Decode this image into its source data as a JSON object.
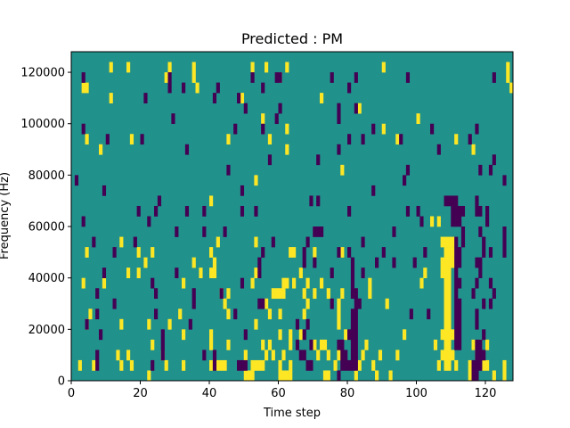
{
  "chart_data": {
    "type": "heatmap",
    "title": "Predicted : PM",
    "xlabel": "Time step",
    "ylabel": "Frequency (Hz)",
    "xlim": [
      0,
      128
    ],
    "ylim": [
      0,
      128000
    ],
    "x_ticks": [
      0,
      20,
      40,
      60,
      80,
      100,
      120
    ],
    "y_ticks": [
      0,
      20000,
      40000,
      60000,
      80000,
      100000,
      120000
    ],
    "y_tick_labels": [
      "0",
      "20000",
      "40000",
      "60000",
      "80000",
      "100000",
      "120000"
    ],
    "grid": false,
    "colormap": "viridis",
    "levels": {
      "low": 0,
      "mid": 1,
      "high": 2
    },
    "colors": {
      "low": "#440154",
      "mid": "#21918c",
      "high": "#fde725"
    },
    "background_level": 1,
    "cell_size": {
      "time_step": 1,
      "frequency_hz": 4000
    },
    "high_cells": [
      [
        3,
        28
      ],
      [
        11,
        30
      ],
      [
        16,
        30
      ],
      [
        28,
        30
      ],
      [
        35,
        30
      ],
      [
        52,
        30
      ],
      [
        56,
        30
      ],
      [
        62,
        30
      ],
      [
        90,
        30
      ],
      [
        126,
        30
      ],
      [
        27,
        29
      ],
      [
        35,
        29
      ],
      [
        60,
        29
      ],
      [
        126,
        29
      ],
      [
        4,
        28
      ],
      [
        36,
        28
      ],
      [
        11,
        27
      ],
      [
        49,
        27
      ],
      [
        72,
        27
      ],
      [
        127,
        28
      ],
      [
        55,
        25
      ],
      [
        100,
        25
      ],
      [
        83,
        26
      ],
      [
        62,
        24
      ],
      [
        90,
        24
      ],
      [
        4,
        23
      ],
      [
        17,
        23
      ],
      [
        45,
        23
      ],
      [
        57,
        23
      ],
      [
        94,
        23
      ],
      [
        111,
        23
      ],
      [
        8,
        22
      ],
      [
        116,
        22
      ],
      [
        62,
        22
      ],
      [
        53,
        19
      ],
      [
        78,
        20
      ],
      [
        40,
        17
      ],
      [
        104,
        15
      ],
      [
        106,
        15
      ],
      [
        107,
        13
      ],
      [
        108,
        13
      ],
      [
        109,
        13
      ],
      [
        110,
        13
      ],
      [
        108,
        12
      ],
      [
        109,
        12
      ],
      [
        110,
        12
      ],
      [
        107,
        11
      ],
      [
        108,
        11
      ],
      [
        109,
        11
      ],
      [
        110,
        11
      ],
      [
        107,
        10
      ],
      [
        108,
        10
      ],
      [
        109,
        10
      ],
      [
        108,
        9
      ],
      [
        109,
        9
      ],
      [
        108,
        8
      ],
      [
        109,
        8
      ],
      [
        108,
        7
      ],
      [
        109,
        7
      ],
      [
        108,
        6
      ],
      [
        109,
        6
      ],
      [
        108,
        5
      ],
      [
        109,
        5
      ],
      [
        107,
        4
      ],
      [
        108,
        4
      ],
      [
        109,
        4
      ],
      [
        110,
        4
      ],
      [
        108,
        3
      ],
      [
        109,
        3
      ],
      [
        107,
        2
      ],
      [
        108,
        2
      ],
      [
        109,
        2
      ],
      [
        110,
        2
      ],
      [
        108,
        1
      ],
      [
        109,
        1
      ],
      [
        106,
        1
      ],
      [
        111,
        1
      ],
      [
        14,
        13
      ],
      [
        19,
        12
      ],
      [
        23,
        12
      ],
      [
        21,
        11
      ],
      [
        35,
        11
      ],
      [
        42,
        13
      ],
      [
        53,
        13
      ],
      [
        40,
        12
      ],
      [
        41,
        11
      ],
      [
        63,
        12
      ],
      [
        64,
        12
      ],
      [
        70,
        12
      ],
      [
        78,
        12
      ],
      [
        4,
        12
      ],
      [
        16,
        10
      ],
      [
        19,
        10
      ],
      [
        41,
        10
      ],
      [
        53,
        10
      ],
      [
        66,
        10
      ],
      [
        32,
        9
      ],
      [
        52,
        9
      ],
      [
        61,
        9
      ],
      [
        62,
        9
      ],
      [
        64,
        9
      ],
      [
        68,
        9
      ],
      [
        72,
        9
      ],
      [
        67,
        8
      ],
      [
        74,
        8
      ],
      [
        78,
        8
      ],
      [
        43,
        8
      ],
      [
        45,
        8
      ],
      [
        58,
        8
      ],
      [
        59,
        8
      ],
      [
        60,
        8
      ],
      [
        61,
        8
      ],
      [
        70,
        8
      ],
      [
        86,
        8
      ],
      [
        86,
        9
      ],
      [
        101,
        9
      ],
      [
        102,
        10
      ],
      [
        9,
        9
      ],
      [
        3,
        9
      ],
      [
        37,
        10
      ],
      [
        40,
        10
      ],
      [
        44,
        7
      ],
      [
        56,
        7
      ],
      [
        68,
        7
      ],
      [
        77,
        7
      ],
      [
        77,
        6
      ],
      [
        91,
        7
      ],
      [
        5,
        6
      ],
      [
        31,
        6
      ],
      [
        45,
        6
      ],
      [
        57,
        6
      ],
      [
        60,
        6
      ],
      [
        67,
        6
      ],
      [
        77,
        5
      ],
      [
        4,
        5
      ],
      [
        14,
        5
      ],
      [
        22,
        5
      ],
      [
        28,
        5
      ],
      [
        53,
        5
      ],
      [
        60,
        4
      ],
      [
        63,
        4
      ],
      [
        66,
        4
      ],
      [
        79,
        4
      ],
      [
        96,
        4
      ],
      [
        40,
        3
      ],
      [
        45,
        3
      ],
      [
        55,
        3
      ],
      [
        63,
        3
      ],
      [
        70,
        3
      ],
      [
        72,
        3
      ],
      [
        73,
        3
      ],
      [
        85,
        3
      ],
      [
        56,
        2
      ],
      [
        61,
        2
      ],
      [
        71,
        2
      ],
      [
        74,
        2
      ],
      [
        77,
        2
      ],
      [
        84,
        2
      ],
      [
        89,
        2
      ],
      [
        94,
        2
      ],
      [
        117,
        2
      ],
      [
        2,
        1
      ],
      [
        6,
        1
      ],
      [
        14,
        1
      ],
      [
        17,
        1
      ],
      [
        27,
        1
      ],
      [
        32,
        1
      ],
      [
        40,
        1
      ],
      [
        42,
        1
      ],
      [
        43,
        1
      ],
      [
        44,
        1
      ],
      [
        52,
        1
      ],
      [
        53,
        1
      ],
      [
        54,
        1
      ],
      [
        55,
        1
      ],
      [
        60,
        1
      ],
      [
        63,
        1
      ],
      [
        76,
        1
      ],
      [
        83,
        1
      ],
      [
        87,
        1
      ],
      [
        115,
        1
      ],
      [
        119,
        1
      ],
      [
        120,
        1
      ],
      [
        125,
        1
      ],
      [
        22,
        0
      ],
      [
        50,
        0
      ],
      [
        51,
        0
      ],
      [
        52,
        0
      ],
      [
        60,
        0
      ],
      [
        61,
        0
      ],
      [
        62,
        0
      ],
      [
        63,
        0
      ],
      [
        73,
        0
      ],
      [
        74,
        0
      ],
      [
        82,
        0
      ],
      [
        88,
        0
      ],
      [
        92,
        0
      ],
      [
        115,
        0
      ],
      [
        122,
        0
      ],
      [
        125,
        0
      ],
      [
        32,
        4
      ],
      [
        40,
        4
      ],
      [
        57,
        3
      ],
      [
        23,
        3
      ],
      [
        16,
        2
      ],
      [
        26,
        2
      ],
      [
        13,
        2
      ],
      [
        58,
        2
      ],
      [
        50,
        2
      ],
      [
        105,
        3
      ],
      [
        116,
        3
      ],
      [
        118,
        3
      ],
      [
        120,
        3
      ]
    ],
    "low_cells": [
      [
        3,
        29
      ],
      [
        28,
        29
      ],
      [
        52,
        29
      ],
      [
        60,
        29
      ],
      [
        75,
        29
      ],
      [
        82,
        29
      ],
      [
        97,
        29
      ],
      [
        122,
        29
      ],
      [
        28,
        28
      ],
      [
        32,
        28
      ],
      [
        42,
        28
      ],
      [
        55,
        28
      ],
      [
        80,
        28
      ],
      [
        21,
        27
      ],
      [
        41,
        27
      ],
      [
        48,
        27
      ],
      [
        50,
        26
      ],
      [
        60,
        26
      ],
      [
        29,
        25
      ],
      [
        77,
        25
      ],
      [
        77,
        26
      ],
      [
        3,
        24
      ],
      [
        47,
        24
      ],
      [
        55,
        24
      ],
      [
        87,
        24
      ],
      [
        104,
        24
      ],
      [
        117,
        24
      ],
      [
        10,
        23
      ],
      [
        20,
        23
      ],
      [
        80,
        23
      ],
      [
        84,
        23
      ],
      [
        95,
        23
      ],
      [
        115,
        23
      ],
      [
        33,
        22
      ],
      [
        106,
        22
      ],
      [
        77,
        22
      ],
      [
        71,
        21
      ],
      [
        57,
        21
      ],
      [
        45,
        20
      ],
      [
        118,
        20
      ],
      [
        97,
        20
      ],
      [
        1,
        19
      ],
      [
        9,
        18
      ],
      [
        49,
        18
      ],
      [
        87,
        18
      ],
      [
        96,
        19
      ],
      [
        125,
        19
      ],
      [
        122,
        21
      ],
      [
        121,
        20
      ],
      [
        82,
        26
      ],
      [
        25,
        17
      ],
      [
        33,
        16
      ],
      [
        38,
        16
      ],
      [
        69,
        17
      ],
      [
        71,
        17
      ],
      [
        108,
        17
      ],
      [
        109,
        17
      ],
      [
        110,
        17
      ],
      [
        111,
        17
      ],
      [
        110,
        16
      ],
      [
        111,
        16
      ],
      [
        112,
        16
      ],
      [
        113,
        16
      ],
      [
        117,
        17
      ],
      [
        19,
        16
      ],
      [
        24,
        16
      ],
      [
        49,
        16
      ],
      [
        53,
        16
      ],
      [
        80,
        16
      ],
      [
        97,
        16
      ],
      [
        100,
        16
      ],
      [
        117,
        16
      ],
      [
        118,
        16
      ],
      [
        120,
        16
      ],
      [
        110,
        15
      ],
      [
        111,
        15
      ],
      [
        112,
        15
      ],
      [
        120,
        15
      ],
      [
        3,
        15
      ],
      [
        22,
        15
      ],
      [
        101,
        15
      ],
      [
        70,
        14
      ],
      [
        71,
        14
      ],
      [
        72,
        14
      ],
      [
        118,
        14
      ],
      [
        30,
        14
      ],
      [
        38,
        14
      ],
      [
        44,
        14
      ],
      [
        93,
        14
      ],
      [
        113,
        14
      ],
      [
        125,
        14
      ],
      [
        111,
        13
      ],
      [
        113,
        13
      ],
      [
        119,
        13
      ],
      [
        6,
        13
      ],
      [
        18,
        13
      ],
      [
        58,
        13
      ],
      [
        68,
        13
      ],
      [
        84,
        13
      ],
      [
        125,
        13
      ],
      [
        121,
        12
      ],
      [
        12,
        12
      ],
      [
        55,
        12
      ],
      [
        67,
        12
      ],
      [
        77,
        12
      ],
      [
        80,
        12
      ],
      [
        90,
        12
      ],
      [
        102,
        12
      ],
      [
        111,
        12
      ],
      [
        112,
        12
      ],
      [
        119,
        12
      ],
      [
        125,
        12
      ],
      [
        111,
        11
      ],
      [
        112,
        11
      ],
      [
        117,
        11
      ],
      [
        54,
        11
      ],
      [
        67,
        11
      ],
      [
        70,
        11
      ],
      [
        81,
        11
      ],
      [
        88,
        11
      ],
      [
        93,
        11
      ],
      [
        99,
        11
      ],
      [
        118,
        11
      ],
      [
        111,
        10
      ],
      [
        118,
        10
      ],
      [
        9,
        10
      ],
      [
        30,
        10
      ],
      [
        54,
        10
      ],
      [
        75,
        10
      ],
      [
        81,
        10
      ],
      [
        84,
        10
      ],
      [
        111,
        9
      ],
      [
        112,
        9
      ],
      [
        117,
        9
      ],
      [
        121,
        9
      ],
      [
        81,
        9
      ],
      [
        49,
        9
      ],
      [
        23,
        9
      ],
      [
        81,
        8
      ],
      [
        82,
        8
      ],
      [
        111,
        8
      ],
      [
        116,
        8
      ],
      [
        122,
        8
      ],
      [
        7,
        8
      ],
      [
        24,
        8
      ],
      [
        43,
        8
      ],
      [
        119,
        7
      ],
      [
        121,
        7
      ],
      [
        75,
        7
      ],
      [
        82,
        7
      ],
      [
        83,
        7
      ],
      [
        111,
        7
      ],
      [
        112,
        7
      ],
      [
        12,
        7
      ],
      [
        35,
        7
      ],
      [
        55,
        7
      ],
      [
        111,
        6
      ],
      [
        112,
        6
      ],
      [
        117,
        6
      ],
      [
        7,
        6
      ],
      [
        24,
        6
      ],
      [
        47,
        6
      ],
      [
        82,
        6
      ],
      [
        81,
        6
      ],
      [
        98,
        6
      ],
      [
        111,
        5
      ],
      [
        112,
        5
      ],
      [
        117,
        5
      ],
      [
        4,
        5
      ],
      [
        34,
        5
      ],
      [
        65,
        5
      ],
      [
        68,
        5
      ],
      [
        81,
        5
      ],
      [
        82,
        5
      ],
      [
        111,
        4
      ],
      [
        112,
        4
      ],
      [
        119,
        4
      ],
      [
        8,
        4
      ],
      [
        26,
        4
      ],
      [
        50,
        4
      ],
      [
        80,
        4
      ],
      [
        81,
        4
      ],
      [
        82,
        4
      ],
      [
        111,
        3
      ],
      [
        112,
        3
      ],
      [
        117,
        3
      ],
      [
        118,
        3
      ],
      [
        26,
        3
      ],
      [
        69,
        3
      ],
      [
        77,
        3
      ],
      [
        78,
        3
      ],
      [
        81,
        3
      ],
      [
        82,
        3
      ],
      [
        117,
        2
      ],
      [
        118,
        2
      ],
      [
        119,
        2
      ],
      [
        7,
        2
      ],
      [
        26,
        2
      ],
      [
        66,
        2
      ],
      [
        67,
        2
      ],
      [
        78,
        2
      ],
      [
        79,
        2
      ],
      [
        81,
        2
      ],
      [
        82,
        2
      ],
      [
        116,
        1
      ],
      [
        117,
        1
      ],
      [
        118,
        1
      ],
      [
        68,
        1
      ],
      [
        69,
        1
      ],
      [
        78,
        1
      ],
      [
        79,
        1
      ],
      [
        80,
        1
      ],
      [
        81,
        1
      ],
      [
        82,
        1
      ],
      [
        41,
        1
      ],
      [
        116,
        0
      ],
      [
        117,
        0
      ],
      [
        77,
        0
      ],
      [
        23,
        1
      ],
      [
        48,
        1
      ],
      [
        49,
        1
      ],
      [
        50,
        1
      ],
      [
        7,
        1
      ],
      [
        41,
        2
      ],
      [
        38,
        2
      ],
      [
        67,
        4
      ],
      [
        65,
        3
      ],
      [
        54,
        7
      ],
      [
        103,
        6
      ],
      [
        35,
        8
      ],
      [
        59,
        29
      ],
      [
        59,
        25
      ]
    ]
  }
}
